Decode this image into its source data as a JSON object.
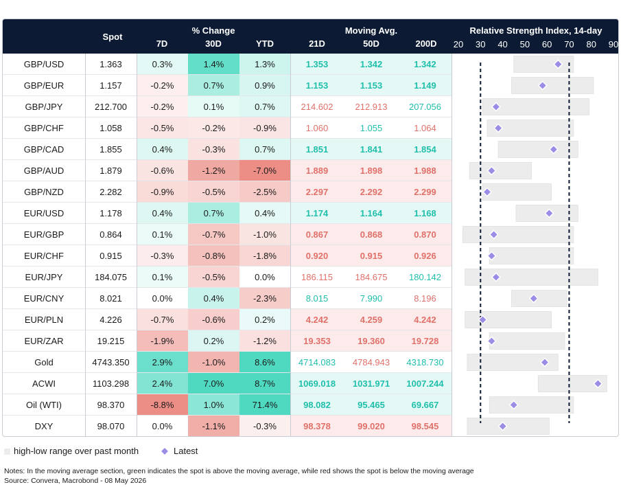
{
  "header": {
    "spot": "Spot",
    "pct_group": "% Change",
    "pct_cols": [
      "7D",
      "30D",
      "YTD"
    ],
    "ma_group": "Moving Avg.",
    "ma_cols": [
      "21D",
      "50D",
      "200D"
    ],
    "rsi_title": "Relative Strength Index, 14-day"
  },
  "colors": {
    "header_bg": "#0c1b33",
    "pos_text": "#1fbfab",
    "neg_text": "#e0706a",
    "rsi_range": "#ececec",
    "rsi_marker": "#9b8ce6",
    "threshold_line": "#0c1b33"
  },
  "chart_data": {
    "type": "table",
    "x_axis_ticks": [
      20,
      30,
      40,
      50,
      60,
      70,
      80,
      90
    ],
    "xlim": [
      20,
      90
    ],
    "thresholds": [
      30,
      70
    ],
    "rows": [
      {
        "name": "GBP/USD",
        "spot": "1.363",
        "d7": "0.3%",
        "d30": "1.4%",
        "ytd": "1.3%",
        "ma21": "1.353",
        "ma50": "1.342",
        "ma200": "1.342",
        "rsi_low": 45,
        "rsi_high": 72,
        "rsi": 65
      },
      {
        "name": "GBP/EUR",
        "spot": "1.157",
        "d7": "-0.2%",
        "d30": "0.7%",
        "ytd": "0.9%",
        "ma21": "1.153",
        "ma50": "1.153",
        "ma200": "1.149",
        "rsi_low": 44,
        "rsi_high": 81,
        "rsi": 58
      },
      {
        "name": "GBP/JPY",
        "spot": "212.700",
        "d7": "-0.2%",
        "d30": "0.1%",
        "ytd": "0.7%",
        "ma21": "214.602",
        "ma50": "212.913",
        "ma200": "207.056",
        "rsi_low": 31,
        "rsi_high": 79,
        "rsi": 37
      },
      {
        "name": "GBP/CHF",
        "spot": "1.058",
        "d7": "-0.5%",
        "d30": "-0.2%",
        "ytd": "-0.9%",
        "ma21": "1.060",
        "ma50": "1.055",
        "ma200": "1.064",
        "rsi_low": 33,
        "rsi_high": 72,
        "rsi": 38
      },
      {
        "name": "GBP/CAD",
        "spot": "1.855",
        "d7": "0.4%",
        "d30": "-0.3%",
        "ytd": "0.7%",
        "ma21": "1.851",
        "ma50": "1.841",
        "ma200": "1.854",
        "rsi_low": 38,
        "rsi_high": 74,
        "rsi": 63
      },
      {
        "name": "GBP/AUD",
        "spot": "1.879",
        "d7": "-0.6%",
        "d30": "-1.2%",
        "ytd": "-7.0%",
        "ma21": "1.889",
        "ma50": "1.898",
        "ma200": "1.988",
        "rsi_low": 25,
        "rsi_high": 53,
        "rsi": 35
      },
      {
        "name": "GBP/NZD",
        "spot": "2.282",
        "d7": "-0.9%",
        "d30": "-0.5%",
        "ytd": "-2.5%",
        "ma21": "2.297",
        "ma50": "2.292",
        "ma200": "2.299",
        "rsi_low": 31,
        "rsi_high": 62,
        "rsi": 33
      },
      {
        "name": "EUR/USD",
        "spot": "1.178",
        "d7": "0.4%",
        "d30": "0.7%",
        "ytd": "0.4%",
        "ma21": "1.174",
        "ma50": "1.164",
        "ma200": "1.168",
        "rsi_low": 46,
        "rsi_high": 74,
        "rsi": 61
      },
      {
        "name": "EUR/GBP",
        "spot": "0.864",
        "d7": "0.1%",
        "d30": "-0.7%",
        "ytd": "-1.0%",
        "ma21": "0.867",
        "ma50": "0.868",
        "ma200": "0.870",
        "rsi_low": 22,
        "rsi_high": 72,
        "rsi": 36
      },
      {
        "name": "EUR/CHF",
        "spot": "0.915",
        "d7": "-0.3%",
        "d30": "-0.8%",
        "ytd": "-1.8%",
        "ma21": "0.920",
        "ma50": "0.915",
        "ma200": "0.926",
        "rsi_low": 34,
        "rsi_high": 72,
        "rsi": 35
      },
      {
        "name": "EUR/JPY",
        "spot": "184.075",
        "d7": "0.1%",
        "d30": "-0.5%",
        "ytd": "0.0%",
        "ma21": "186.115",
        "ma50": "184.675",
        "ma200": "180.142",
        "rsi_low": 23,
        "rsi_high": 83,
        "rsi": 37
      },
      {
        "name": "EUR/CNY",
        "spot": "8.021",
        "d7": "0.0%",
        "d30": "0.4%",
        "ytd": "-2.3%",
        "ma21": "8.015",
        "ma50": "7.990",
        "ma200": "8.196",
        "rsi_low": 44,
        "rsi_high": 69,
        "rsi": 54
      },
      {
        "name": "EUR/PLN",
        "spot": "4.226",
        "d7": "-0.7%",
        "d30": "-0.6%",
        "ytd": "0.2%",
        "ma21": "4.242",
        "ma50": "4.259",
        "ma200": "4.242",
        "rsi_low": 23,
        "rsi_high": 62,
        "rsi": 31
      },
      {
        "name": "EUR/ZAR",
        "spot": "19.215",
        "d7": "-1.9%",
        "d30": "0.2%",
        "ytd": "-1.2%",
        "ma21": "19.353",
        "ma50": "19.360",
        "ma200": "19.728",
        "rsi_low": 34,
        "rsi_high": 68,
        "rsi": 35
      },
      {
        "name": "Gold",
        "spot": "4743.350",
        "d7": "2.9%",
        "d30": "-1.0%",
        "ytd": "8.6%",
        "ma21": "4714.083",
        "ma50": "4784.943",
        "ma200": "4318.730",
        "rsi_low": 24,
        "rsi_high": 65,
        "rsi": 59
      },
      {
        "name": "ACWI",
        "spot": "1103.298",
        "d7": "2.4%",
        "d30": "7.0%",
        "ytd": "8.7%",
        "ma21": "1069.018",
        "ma50": "1031.971",
        "ma200": "1007.244",
        "rsi_low": 56,
        "rsi_high": 87,
        "rsi": 83
      },
      {
        "name": "Oil (WTI)",
        "spot": "98.370",
        "d7": "-8.8%",
        "d30": "1.0%",
        "ytd": "71.4%",
        "ma21": "98.082",
        "ma50": "95.465",
        "ma200": "69.667",
        "rsi_low": 34,
        "rsi_high": 72,
        "rsi": 45
      },
      {
        "name": "DXY",
        "spot": "98.070",
        "d7": "0.0%",
        "d30": "-1.1%",
        "ytd": "-0.3%",
        "ma21": "98.378",
        "ma50": "99.020",
        "ma200": "98.545",
        "rsi_low": 24,
        "rsi_high": 61,
        "rsi": 40
      }
    ]
  },
  "legend": {
    "range_label": "high-low range over past month",
    "latest_label": "Latest"
  },
  "notes": {
    "line1": "Notes: In the moving average section, green indicates the spot is above the moving average, while red shows the spot is below the moving average",
    "line2": "Source: Convera, Macrobond - 08 May 2026"
  }
}
